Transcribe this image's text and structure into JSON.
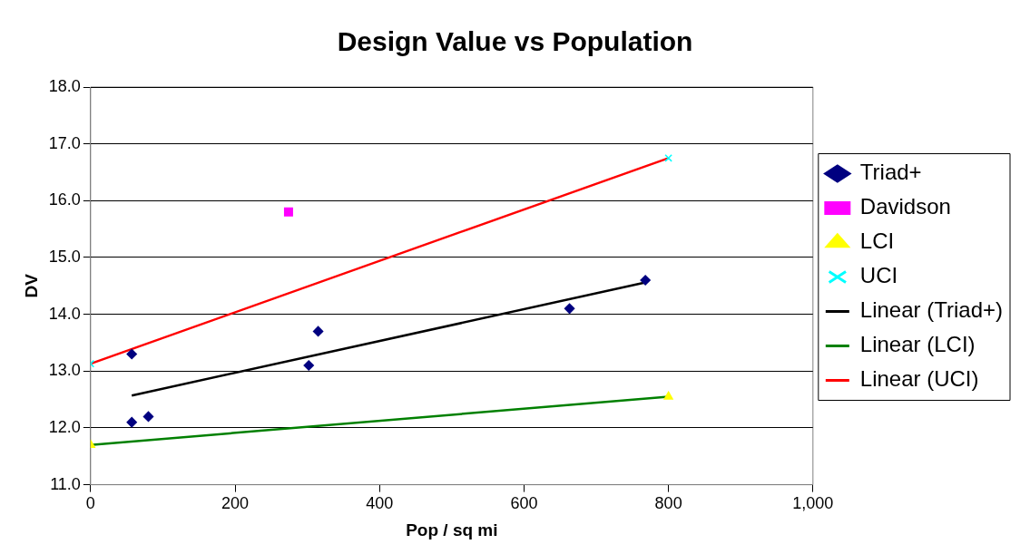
{
  "chart_data": {
    "type": "scatter",
    "title": "Design Value vs Population",
    "xlabel": "Pop / sq mi",
    "ylabel": "DV",
    "xlim": [
      0,
      1000
    ],
    "xticks": [
      0,
      200,
      400,
      600,
      800,
      {
        "value": 1000,
        "label": "1,000"
      }
    ],
    "ylim": [
      11,
      18
    ],
    "yticks": [
      {
        "value": 11,
        "label": "11.0"
      },
      {
        "value": 12,
        "label": "12.0"
      },
      {
        "value": 13,
        "label": "13.0"
      },
      {
        "value": 14,
        "label": "14.0"
      },
      {
        "value": 15,
        "label": "15.0"
      },
      {
        "value": 16,
        "label": "16.0"
      },
      {
        "value": 17,
        "label": "17.0"
      },
      {
        "value": 18,
        "label": "18.0"
      }
    ],
    "grid": "y",
    "legend": "right",
    "series": [
      {
        "name": "Triad+",
        "color": "#000080",
        "marker": "diamond",
        "x": [
          57,
          57,
          80,
          302,
          315,
          663,
          768
        ],
        "values": [
          13.3,
          12.1,
          12.2,
          13.1,
          13.7,
          14.1,
          14.6
        ]
      },
      {
        "name": "Davidson",
        "color": "#ff00ff",
        "marker": "square",
        "x": [
          274
        ],
        "values": [
          15.8
        ]
      },
      {
        "name": "LCI",
        "color": "#ffff00",
        "marker": "triangle",
        "x": [
          0,
          800
        ],
        "values": [
          11.7,
          12.55
        ]
      },
      {
        "name": "UCI",
        "color": "#00ffff",
        "marker": "cross",
        "x": [
          0,
          800
        ],
        "values": [
          13.13,
          16.75
        ]
      },
      {
        "name": "Linear (Triad+)",
        "type": "line",
        "color": "#000000",
        "marker": "none",
        "x": [
          57,
          768
        ],
        "values": [
          12.57,
          14.56
        ]
      },
      {
        "name": "Linear (LCI)",
        "type": "line",
        "color": "#008000",
        "marker": "none",
        "x": [
          0,
          800
        ],
        "values": [
          11.7,
          12.55
        ]
      },
      {
        "name": "Linear (UCI)",
        "type": "line",
        "color": "#ff0000",
        "marker": "none",
        "x": [
          0,
          800
        ],
        "values": [
          13.13,
          16.75
        ]
      }
    ]
  }
}
